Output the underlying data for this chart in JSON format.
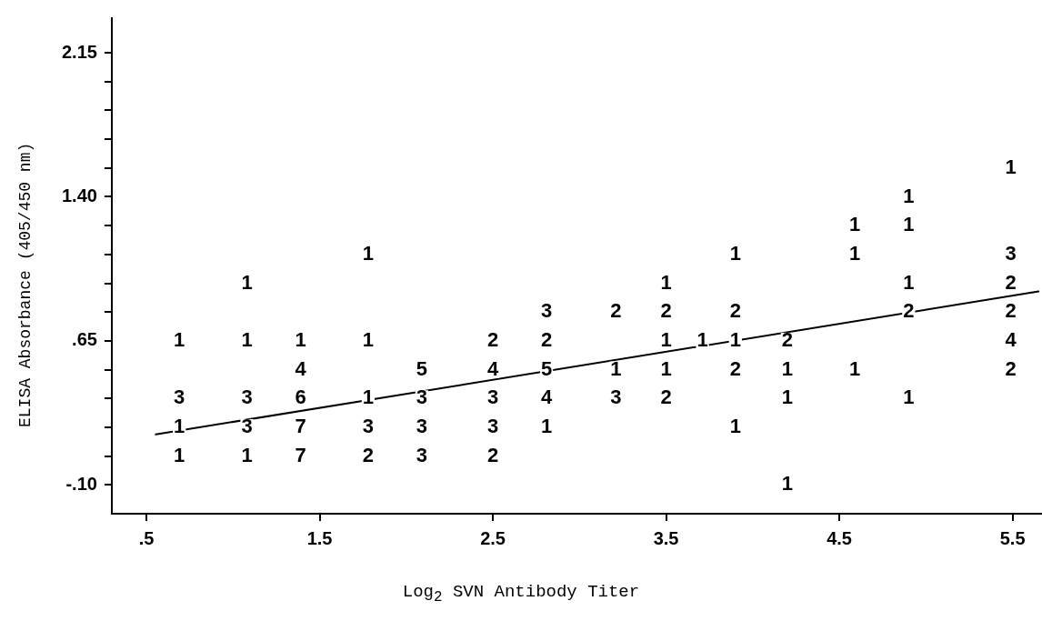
{
  "chart_data": {
    "type": "scatter",
    "xlabel": "Log$_{2}$ SVN Antibody Titer",
    "ylabel": "ELISA Absorbance (405/450 nm)",
    "xlim": [
      0.3,
      5.67
    ],
    "ylim": [
      -0.25,
      2.33
    ],
    "xticks": [
      {
        "value": 0.5,
        "label": ".5"
      },
      1.5,
      2.5,
      3.5,
      4.5,
      5.5
    ],
    "yticks": [
      {
        "value": -0.1,
        "label": "-.10"
      },
      {
        "value": 0.05,
        "label": null
      },
      {
        "value": 0.2,
        "label": null
      },
      {
        "value": 0.35,
        "label": null
      },
      {
        "value": 0.5,
        "label": null
      },
      {
        "value": 0.65,
        "label": ".65"
      },
      {
        "value": 0.8,
        "label": null
      },
      {
        "value": 0.95,
        "label": null
      },
      {
        "value": 1.1,
        "label": null
      },
      {
        "value": 1.25,
        "label": null
      },
      {
        "value": 1.4,
        "label": "1.40"
      },
      {
        "value": 1.55,
        "label": null
      },
      {
        "value": 1.7,
        "label": null
      },
      {
        "value": 1.85,
        "label": null
      },
      {
        "value": 2.0,
        "label": null
      },
      {
        "value": 2.15,
        "label": "2.15"
      }
    ],
    "grid": false,
    "legend": false,
    "annotations": [
      {
        "text": "1",
        "x": 0.69,
        "y": 0.65
      },
      {
        "text": "3",
        "x": 0.69,
        "y": 0.35
      },
      {
        "text": "1",
        "x": 0.69,
        "y": 0.2
      },
      {
        "text": "1",
        "x": 0.69,
        "y": 0.05
      },
      {
        "text": "1",
        "x": 1.08,
        "y": 0.95
      },
      {
        "text": "1",
        "x": 1.08,
        "y": 0.65
      },
      {
        "text": "3",
        "x": 1.08,
        "y": 0.35
      },
      {
        "text": "3",
        "x": 1.08,
        "y": 0.2
      },
      {
        "text": "1",
        "x": 1.08,
        "y": 0.05
      },
      {
        "text": "1",
        "x": 1.39,
        "y": 0.65
      },
      {
        "text": "4",
        "x": 1.39,
        "y": 0.5
      },
      {
        "text": "6",
        "x": 1.39,
        "y": 0.35
      },
      {
        "text": "7",
        "x": 1.39,
        "y": 0.2
      },
      {
        "text": "7",
        "x": 1.39,
        "y": 0.05
      },
      {
        "text": "1",
        "x": 1.78,
        "y": 1.1
      },
      {
        "text": "1",
        "x": 1.78,
        "y": 0.65
      },
      {
        "text": "1",
        "x": 1.78,
        "y": 0.35
      },
      {
        "text": "3",
        "x": 1.78,
        "y": 0.2
      },
      {
        "text": "2",
        "x": 1.78,
        "y": 0.05
      },
      {
        "text": "5",
        "x": 2.09,
        "y": 0.5
      },
      {
        "text": "3",
        "x": 2.09,
        "y": 0.35
      },
      {
        "text": "3",
        "x": 2.09,
        "y": 0.2
      },
      {
        "text": "3",
        "x": 2.09,
        "y": 0.05
      },
      {
        "text": "2",
        "x": 2.5,
        "y": 0.65
      },
      {
        "text": "4",
        "x": 2.5,
        "y": 0.5
      },
      {
        "text": "3",
        "x": 2.5,
        "y": 0.35
      },
      {
        "text": "3",
        "x": 2.5,
        "y": 0.2
      },
      {
        "text": "2",
        "x": 2.5,
        "y": 0.05
      },
      {
        "text": "3",
        "x": 2.81,
        "y": 0.8
      },
      {
        "text": "2",
        "x": 2.81,
        "y": 0.65
      },
      {
        "text": "5",
        "x": 2.81,
        "y": 0.5
      },
      {
        "text": "4",
        "x": 2.81,
        "y": 0.35
      },
      {
        "text": "1",
        "x": 2.81,
        "y": 0.2
      },
      {
        "text": "2",
        "x": 3.21,
        "y": 0.8
      },
      {
        "text": "1",
        "x": 3.21,
        "y": 0.5
      },
      {
        "text": "3",
        "x": 3.21,
        "y": 0.35
      },
      {
        "text": "1",
        "x": 3.5,
        "y": 0.95
      },
      {
        "text": "2",
        "x": 3.5,
        "y": 0.8
      },
      {
        "text": "1",
        "x": 3.5,
        "y": 0.65
      },
      {
        "text": "1",
        "x": 3.5,
        "y": 0.5
      },
      {
        "text": "2",
        "x": 3.5,
        "y": 0.35
      },
      {
        "text": "1",
        "x": 3.71,
        "y": 0.65
      },
      {
        "text": "1",
        "x": 3.9,
        "y": 1.1
      },
      {
        "text": "2",
        "x": 3.9,
        "y": 0.8
      },
      {
        "text": "1",
        "x": 3.9,
        "y": 0.65
      },
      {
        "text": "2",
        "x": 3.9,
        "y": 0.5
      },
      {
        "text": "1",
        "x": 3.9,
        "y": 0.2
      },
      {
        "text": "2",
        "x": 4.2,
        "y": 0.65
      },
      {
        "text": "1",
        "x": 4.2,
        "y": 0.5
      },
      {
        "text": "1",
        "x": 4.2,
        "y": 0.35
      },
      {
        "text": "1",
        "x": 4.2,
        "y": -0.1
      },
      {
        "text": "1",
        "x": 4.59,
        "y": 1.25
      },
      {
        "text": "1",
        "x": 4.59,
        "y": 1.1
      },
      {
        "text": "1",
        "x": 4.59,
        "y": 0.5
      },
      {
        "text": "1",
        "x": 4.9,
        "y": 1.4
      },
      {
        "text": "1",
        "x": 4.9,
        "y": 1.25
      },
      {
        "text": "1",
        "x": 4.9,
        "y": 0.95
      },
      {
        "text": "2",
        "x": 4.9,
        "y": 0.8
      },
      {
        "text": "1",
        "x": 4.9,
        "y": 0.35
      },
      {
        "text": "1",
        "x": 5.49,
        "y": 1.55
      },
      {
        "text": "3",
        "x": 5.49,
        "y": 1.1
      },
      {
        "text": "2",
        "x": 5.49,
        "y": 0.95
      },
      {
        "text": "2",
        "x": 5.49,
        "y": 0.8
      },
      {
        "text": "4",
        "x": 5.49,
        "y": 0.65
      },
      {
        "text": "2",
        "x": 5.49,
        "y": 0.5
      }
    ],
    "series": [
      {
        "type": "line",
        "color": "#000000",
        "x": [
          0.554,
          5.65
        ],
        "values": [
          0.163,
          0.907
        ]
      }
    ]
  }
}
